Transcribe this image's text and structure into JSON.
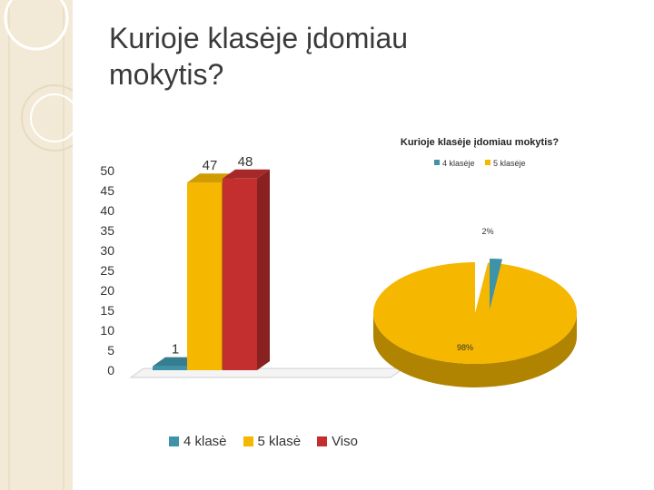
{
  "slide": {
    "title_line1": "Kurioje klasėje įdomiau",
    "title_line2": "mokytis?"
  },
  "chart_data": [
    {
      "type": "bar",
      "categories": [
        "4 klasė",
        "5 klasė",
        "Viso"
      ],
      "values": [
        1,
        47,
        48
      ],
      "data_labels": [
        "1",
        "47",
        "48"
      ],
      "ylim": [
        0,
        50
      ],
      "yticks": [
        0,
        5,
        10,
        15,
        20,
        25,
        30,
        35,
        40,
        45,
        50
      ],
      "colors": [
        "#3f93a8",
        "#f5b700",
        "#c32f2f"
      ],
      "legend": [
        "4 klasė",
        "5 klasė",
        "Viso"
      ],
      "legend_position": "bottom",
      "grid": false
    },
    {
      "type": "pie",
      "title": "Kurioje klasėje įdomiau mokytis?",
      "labels": [
        "4 klasėje",
        "5 klasėje"
      ],
      "values": [
        2,
        98
      ],
      "data_labels": [
        "2%",
        "98%"
      ],
      "colors": [
        "#3f93a8",
        "#f5b700"
      ],
      "legend_position": "top"
    }
  ]
}
